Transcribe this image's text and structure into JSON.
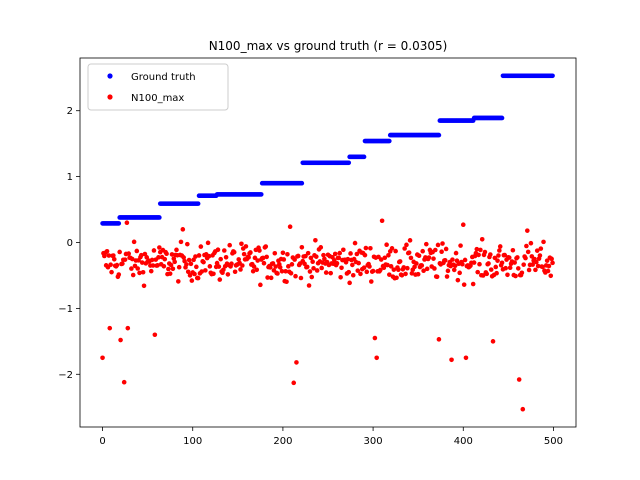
{
  "chart_data": {
    "type": "scatter",
    "title": "N100_max vs ground truth (r = 0.0305)",
    "xlabel": "",
    "ylabel": "",
    "xlim": [
      -25,
      525
    ],
    "ylim": [
      -2.8,
      2.8
    ],
    "xticks": [
      0,
      100,
      200,
      300,
      400,
      500
    ],
    "xtick_labels": [
      "0",
      "100",
      "200",
      "300",
      "400",
      "500"
    ],
    "yticks": [
      -2,
      -1,
      0,
      1,
      2
    ],
    "ytick_labels": [
      "−2",
      "−1",
      "0",
      "1",
      "2"
    ],
    "grid": false,
    "legend_position": "upper-left",
    "n_points": 500,
    "series": [
      {
        "name": "Ground truth",
        "color": "#0000ff",
        "marker": "dot",
        "step_levels": [
          {
            "x_start": 0,
            "x_end": 18,
            "y": 0.29
          },
          {
            "x_start": 19,
            "x_end": 63,
            "y": 0.38
          },
          {
            "x_start": 64,
            "x_end": 106,
            "y": 0.59
          },
          {
            "x_start": 107,
            "x_end": 126,
            "y": 0.71
          },
          {
            "x_start": 127,
            "x_end": 176,
            "y": 0.73
          },
          {
            "x_start": 177,
            "x_end": 221,
            "y": 0.9
          },
          {
            "x_start": 222,
            "x_end": 273,
            "y": 1.21
          },
          {
            "x_start": 274,
            "x_end": 290,
            "y": 1.3
          },
          {
            "x_start": 291,
            "x_end": 318,
            "y": 1.54
          },
          {
            "x_start": 319,
            "x_end": 373,
            "y": 1.63
          },
          {
            "x_start": 374,
            "x_end": 411,
            "y": 1.85
          },
          {
            "x_start": 412,
            "x_end": 443,
            "y": 1.89
          },
          {
            "x_start": 444,
            "x_end": 499,
            "y": 2.53
          }
        ]
      },
      {
        "name": "N100_max",
        "color": "#ff0000",
        "marker": "dot",
        "center": -0.3,
        "spread": 0.25,
        "notable_points": [
          {
            "x": 0,
            "y": -1.75
          },
          {
            "x": 8,
            "y": -1.3
          },
          {
            "x": 20,
            "y": -1.48
          },
          {
            "x": 24,
            "y": -2.12
          },
          {
            "x": 28,
            "y": -1.3
          },
          {
            "x": 58,
            "y": -1.4
          },
          {
            "x": 27,
            "y": 0.3
          },
          {
            "x": 215,
            "y": -1.82
          },
          {
            "x": 212,
            "y": -2.13
          },
          {
            "x": 208,
            "y": 0.24
          },
          {
            "x": 302,
            "y": -1.45
          },
          {
            "x": 304,
            "y": -1.75
          },
          {
            "x": 310,
            "y": 0.33
          },
          {
            "x": 373,
            "y": -1.47
          },
          {
            "x": 387,
            "y": -1.78
          },
          {
            "x": 403,
            "y": -1.75
          },
          {
            "x": 433,
            "y": -1.5
          },
          {
            "x": 462,
            "y": -2.08
          },
          {
            "x": 466,
            "y": -2.53
          },
          {
            "x": 471,
            "y": 0.18
          },
          {
            "x": 400,
            "y": 0.27
          },
          {
            "x": 89,
            "y": 0.2
          }
        ]
      }
    ]
  }
}
